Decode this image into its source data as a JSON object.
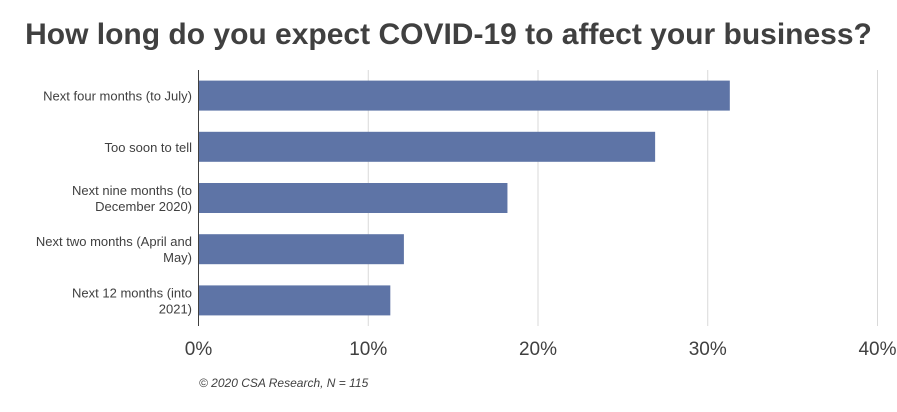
{
  "chart_data": {
    "type": "bar",
    "orientation": "horizontal",
    "title": "How long do you expect COVID-19 to affect your business?",
    "categories": [
      [
        "Next four months (to July)"
      ],
      [
        "Too soon to tell"
      ],
      [
        "Next nine months (to",
        "December 2020)"
      ],
      [
        "Next two months (April and",
        "May)"
      ],
      [
        "Next 12 months (into",
        "2021)"
      ]
    ],
    "values": [
      31.3,
      26.9,
      18.2,
      12.1,
      11.3
    ],
    "xlim": [
      0,
      40
    ],
    "xticks": [
      "0%",
      "10%",
      "20%",
      "30%",
      "40%"
    ],
    "grid": true,
    "bar_color": "#5e74a6"
  },
  "footnote": "© 2020 CSA Research, N = 115"
}
